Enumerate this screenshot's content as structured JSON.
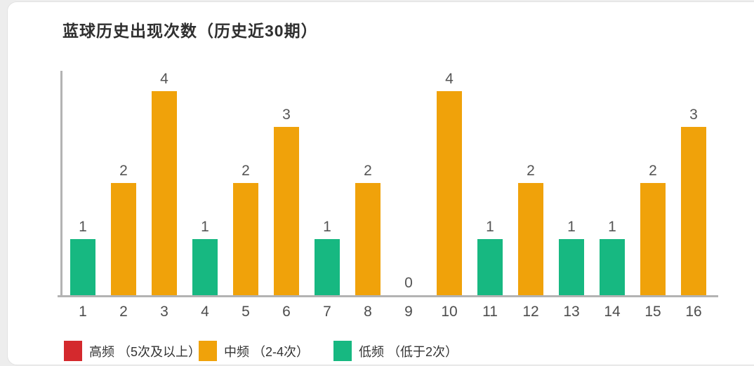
{
  "chart_data": {
    "type": "bar",
    "title": "蓝球历史出现次数（历史近30期）",
    "categories": [
      "1",
      "2",
      "3",
      "4",
      "5",
      "6",
      "7",
      "8",
      "9",
      "10",
      "11",
      "12",
      "13",
      "14",
      "15",
      "16"
    ],
    "values": [
      1,
      2,
      4,
      1,
      2,
      3,
      1,
      2,
      0,
      4,
      1,
      2,
      1,
      1,
      2,
      3
    ],
    "xlabel": "",
    "ylabel": "",
    "ylim": [
      0,
      4
    ],
    "grid": false,
    "value_labels_shown": true,
    "legend_position": "bottom",
    "color_rules": [
      {
        "name": "high-frequency",
        "min_value": 5,
        "color": "#d4292d"
      },
      {
        "name": "medium-frequency",
        "min_value": 2,
        "color": "#f0a20a"
      },
      {
        "name": "low-frequency",
        "min_value": 0,
        "color": "#17b881"
      }
    ]
  },
  "legend": {
    "items": [
      {
        "name": "high-frequency",
        "label": "高频 （5次及以上）",
        "color": "#d4292d"
      },
      {
        "name": "medium-frequency",
        "label": "中频 （2-4次）",
        "color": "#f0a20a"
      },
      {
        "name": "low-frequency",
        "label": "低频 （低于2次）",
        "color": "#17b881"
      }
    ]
  },
  "colors": {
    "high_frequency": "#d4292d",
    "medium_frequency": "#f0a20a",
    "low_frequency": "#17b881",
    "axis_line": "#b3b3b3",
    "value_label_text": "#555555",
    "category_label_text": "#4d4d4d",
    "title_text": "#2f2f2f",
    "legend_text": "#333333",
    "card_background": "#ffffff",
    "page_background": "#ededed"
  }
}
